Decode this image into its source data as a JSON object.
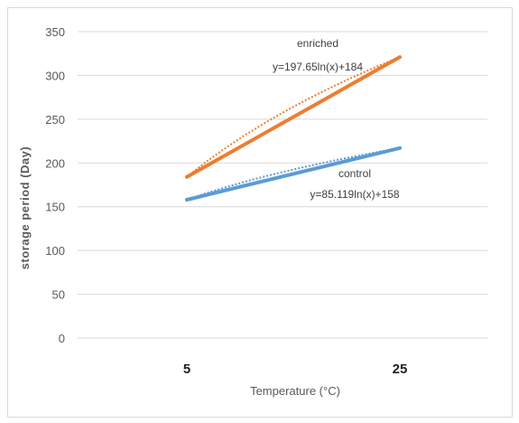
{
  "chart_data": {
    "type": "line",
    "title": "",
    "xlabel": "Temperature (°C)",
    "ylabel": "storage period (Day)",
    "categories": [
      "5",
      "25"
    ],
    "ylim": [
      0,
      350
    ],
    "yticks": [
      0,
      50,
      100,
      150,
      200,
      250,
      300,
      350
    ],
    "grid": true,
    "legend": "none",
    "series": [
      {
        "values": [
          184,
          321
        ],
        "color": "#ed7d31",
        "trendline": {
          "type": "logarithmic",
          "style": "dotted",
          "equation_label": "y=197.65ln(x)+184",
          "series_label": "enriched"
        }
      },
      {
        "values": [
          158,
          217
        ],
        "color": "#5b9bd5",
        "trendline": {
          "type": "logarithmic",
          "style": "dotted",
          "equation_label": "y=85.119ln(x)+158",
          "series_label": "control"
        }
      }
    ],
    "trendline_params": [
      {
        "a": 197.65,
        "b": 184
      },
      {
        "a": 85.119,
        "b": 158
      }
    ]
  }
}
